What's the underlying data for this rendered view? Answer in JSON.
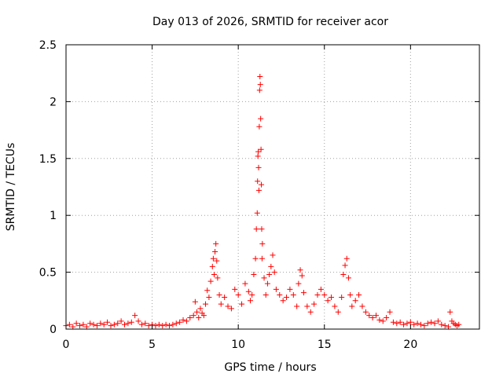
{
  "chart_data": {
    "type": "scatter",
    "title": "Day 013 of 2026, SRMTID for receiver acor",
    "xlabel": "GPS time / hours",
    "ylabel": "SRMTID / TECUs",
    "xlim": [
      0,
      24
    ],
    "ylim": [
      0,
      2.5
    ],
    "xticks": [
      0,
      5,
      10,
      15,
      20
    ],
    "xtick_labels": [
      "0",
      "5",
      "10",
      "15",
      "20"
    ],
    "yticks": [
      0,
      0.5,
      1,
      1.5,
      2,
      2.5
    ],
    "ytick_labels": [
      "0",
      "0.5",
      "1",
      "1.5",
      "2",
      "2.5"
    ],
    "grid": true,
    "marker": "plus",
    "series": [
      {
        "name": "SRMTID",
        "color": "#ff0000",
        "points": [
          [
            0.0,
            0.03
          ],
          [
            0.2,
            0.04
          ],
          [
            0.4,
            0.02
          ],
          [
            0.6,
            0.05
          ],
          [
            0.8,
            0.03
          ],
          [
            1.0,
            0.04
          ],
          [
            1.2,
            0.02
          ],
          [
            1.4,
            0.05
          ],
          [
            1.6,
            0.04
          ],
          [
            1.8,
            0.03
          ],
          [
            2.0,
            0.05
          ],
          [
            2.2,
            0.04
          ],
          [
            2.4,
            0.06
          ],
          [
            2.6,
            0.03
          ],
          [
            2.8,
            0.04
          ],
          [
            3.0,
            0.05
          ],
          [
            3.2,
            0.07
          ],
          [
            3.4,
            0.04
          ],
          [
            3.6,
            0.05
          ],
          [
            3.8,
            0.06
          ],
          [
            4.0,
            0.12
          ],
          [
            4.2,
            0.07
          ],
          [
            4.4,
            0.04
          ],
          [
            4.6,
            0.05
          ],
          [
            4.8,
            0.03
          ],
          [
            5.0,
            0.04
          ],
          [
            5.2,
            0.03
          ],
          [
            5.4,
            0.04
          ],
          [
            5.6,
            0.03
          ],
          [
            5.8,
            0.04
          ],
          [
            6.0,
            0.03
          ],
          [
            6.2,
            0.04
          ],
          [
            6.4,
            0.05
          ],
          [
            6.6,
            0.06
          ],
          [
            6.8,
            0.08
          ],
          [
            7.0,
            0.07
          ],
          [
            7.2,
            0.1
          ],
          [
            7.4,
            0.12
          ],
          [
            7.5,
            0.24
          ],
          [
            7.6,
            0.15
          ],
          [
            7.7,
            0.1
          ],
          [
            7.8,
            0.18
          ],
          [
            7.9,
            0.14
          ],
          [
            8.0,
            0.12
          ],
          [
            8.1,
            0.22
          ],
          [
            8.2,
            0.34
          ],
          [
            8.3,
            0.28
          ],
          [
            8.4,
            0.42
          ],
          [
            8.5,
            0.55
          ],
          [
            8.55,
            0.62
          ],
          [
            8.6,
            0.48
          ],
          [
            8.65,
            0.68
          ],
          [
            8.7,
            0.75
          ],
          [
            8.75,
            0.6
          ],
          [
            8.8,
            0.45
          ],
          [
            8.9,
            0.3
          ],
          [
            9.0,
            0.22
          ],
          [
            9.2,
            0.28
          ],
          [
            9.4,
            0.2
          ],
          [
            9.6,
            0.18
          ],
          [
            9.8,
            0.35
          ],
          [
            10.0,
            0.3
          ],
          [
            10.2,
            0.22
          ],
          [
            10.4,
            0.4
          ],
          [
            10.6,
            0.33
          ],
          [
            10.7,
            0.25
          ],
          [
            10.8,
            0.3
          ],
          [
            10.9,
            0.48
          ],
          [
            11.0,
            0.62
          ],
          [
            11.05,
            0.88
          ],
          [
            11.1,
            1.02
          ],
          [
            11.12,
            1.3
          ],
          [
            11.14,
            1.52
          ],
          [
            11.16,
            1.56
          ],
          [
            11.18,
            1.42
          ],
          [
            11.2,
            1.22
          ],
          [
            11.22,
            1.78
          ],
          [
            11.24,
            2.1
          ],
          [
            11.26,
            2.22
          ],
          [
            11.28,
            2.15
          ],
          [
            11.3,
            1.85
          ],
          [
            11.32,
            1.58
          ],
          [
            11.34,
            1.27
          ],
          [
            11.36,
            0.88
          ],
          [
            11.38,
            0.62
          ],
          [
            11.4,
            0.75
          ],
          [
            11.5,
            0.45
          ],
          [
            11.6,
            0.3
          ],
          [
            11.7,
            0.4
          ],
          [
            11.8,
            0.48
          ],
          [
            11.9,
            0.55
          ],
          [
            12.0,
            0.65
          ],
          [
            12.1,
            0.5
          ],
          [
            12.2,
            0.35
          ],
          [
            12.4,
            0.3
          ],
          [
            12.6,
            0.25
          ],
          [
            12.8,
            0.28
          ],
          [
            13.0,
            0.35
          ],
          [
            13.2,
            0.3
          ],
          [
            13.4,
            0.2
          ],
          [
            13.5,
            0.4
          ],
          [
            13.6,
            0.52
          ],
          [
            13.7,
            0.47
          ],
          [
            13.8,
            0.32
          ],
          [
            14.0,
            0.2
          ],
          [
            14.2,
            0.15
          ],
          [
            14.4,
            0.22
          ],
          [
            14.6,
            0.3
          ],
          [
            14.8,
            0.35
          ],
          [
            15.0,
            0.3
          ],
          [
            15.2,
            0.25
          ],
          [
            15.4,
            0.28
          ],
          [
            15.6,
            0.2
          ],
          [
            15.8,
            0.15
          ],
          [
            16.0,
            0.28
          ],
          [
            16.1,
            0.48
          ],
          [
            16.2,
            0.56
          ],
          [
            16.3,
            0.62
          ],
          [
            16.4,
            0.45
          ],
          [
            16.5,
            0.3
          ],
          [
            16.6,
            0.2
          ],
          [
            16.8,
            0.25
          ],
          [
            17.0,
            0.3
          ],
          [
            17.2,
            0.2
          ],
          [
            17.4,
            0.15
          ],
          [
            17.6,
            0.12
          ],
          [
            17.8,
            0.1
          ],
          [
            18.0,
            0.12
          ],
          [
            18.2,
            0.08
          ],
          [
            18.4,
            0.07
          ],
          [
            18.6,
            0.1
          ],
          [
            18.8,
            0.15
          ],
          [
            19.0,
            0.06
          ],
          [
            19.2,
            0.05
          ],
          [
            19.4,
            0.06
          ],
          [
            19.6,
            0.04
          ],
          [
            19.8,
            0.05
          ],
          [
            20.0,
            0.06
          ],
          [
            20.2,
            0.04
          ],
          [
            20.4,
            0.05
          ],
          [
            20.6,
            0.04
          ],
          [
            20.8,
            0.03
          ],
          [
            21.0,
            0.05
          ],
          [
            21.2,
            0.06
          ],
          [
            21.4,
            0.05
          ],
          [
            21.6,
            0.07
          ],
          [
            21.8,
            0.04
          ],
          [
            22.0,
            0.03
          ],
          [
            22.2,
            0.02
          ],
          [
            22.3,
            0.15
          ],
          [
            22.4,
            0.07
          ],
          [
            22.5,
            0.05
          ],
          [
            22.6,
            0.04
          ],
          [
            22.7,
            0.03
          ],
          [
            22.8,
            0.04
          ]
        ]
      }
    ]
  }
}
